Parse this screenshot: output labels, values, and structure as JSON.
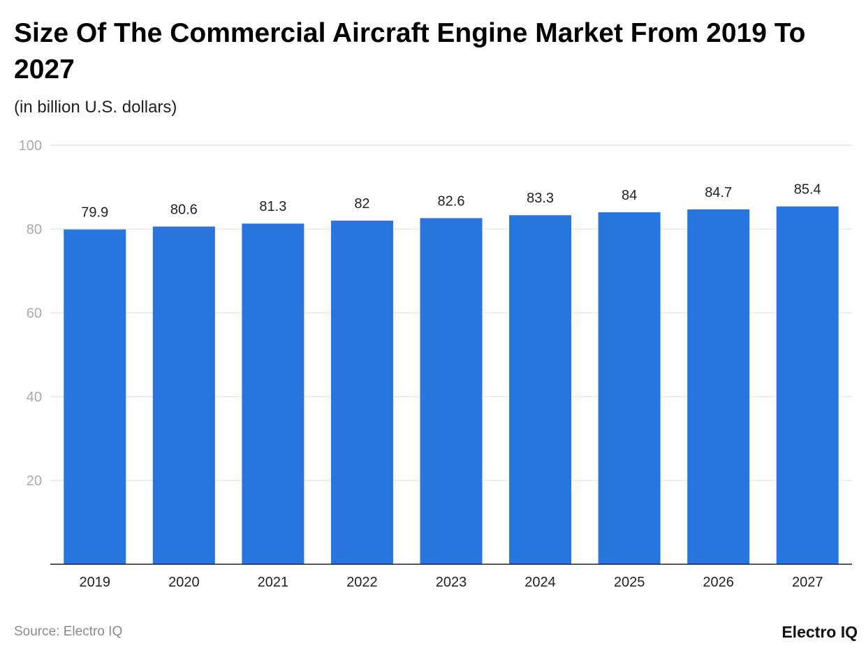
{
  "chart_data": {
    "type": "bar",
    "title": "Size Of The Commercial Aircraft Engine Market From 2019 To 2027",
    "subtitle": "(in billion U.S. dollars)",
    "categories": [
      "2019",
      "2020",
      "2021",
      "2022",
      "2023",
      "2024",
      "2025",
      "2026",
      "2027"
    ],
    "values": [
      79.9,
      80.6,
      81.3,
      82,
      82.6,
      83.3,
      84,
      84.7,
      85.4
    ],
    "ylim": [
      0,
      100
    ],
    "yticks": [
      20,
      40,
      60,
      80,
      100
    ],
    "grid": true,
    "bar_color": "#2876dd",
    "xlabel": "",
    "ylabel": ""
  },
  "footer": {
    "source": "Source: Electro IQ",
    "logo": "Electro IQ"
  }
}
